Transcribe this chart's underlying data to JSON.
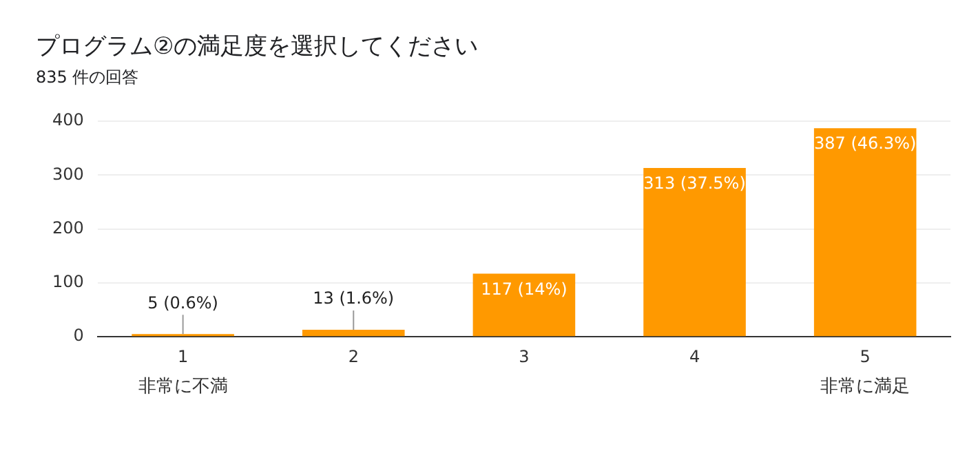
{
  "chart_data": {
    "type": "bar",
    "title": "プログラム②の満足度を選択してください",
    "subtitle": "835 件の回答",
    "categories": [
      "1",
      "2",
      "3",
      "4",
      "5"
    ],
    "values": [
      5,
      13,
      117,
      313,
      387
    ],
    "value_labels": [
      "5 (0.6%)",
      "13 (1.6%)",
      "117 (14%)",
      "313 (37.5%)",
      "387 (46.3%)"
    ],
    "color": "#ff9900",
    "ylim": [
      0,
      400
    ],
    "yticks": [
      0,
      100,
      200,
      300,
      400
    ],
    "grid": "y",
    "legend": false,
    "annotations": [
      "非常に不満",
      "非常に満足"
    ]
  }
}
